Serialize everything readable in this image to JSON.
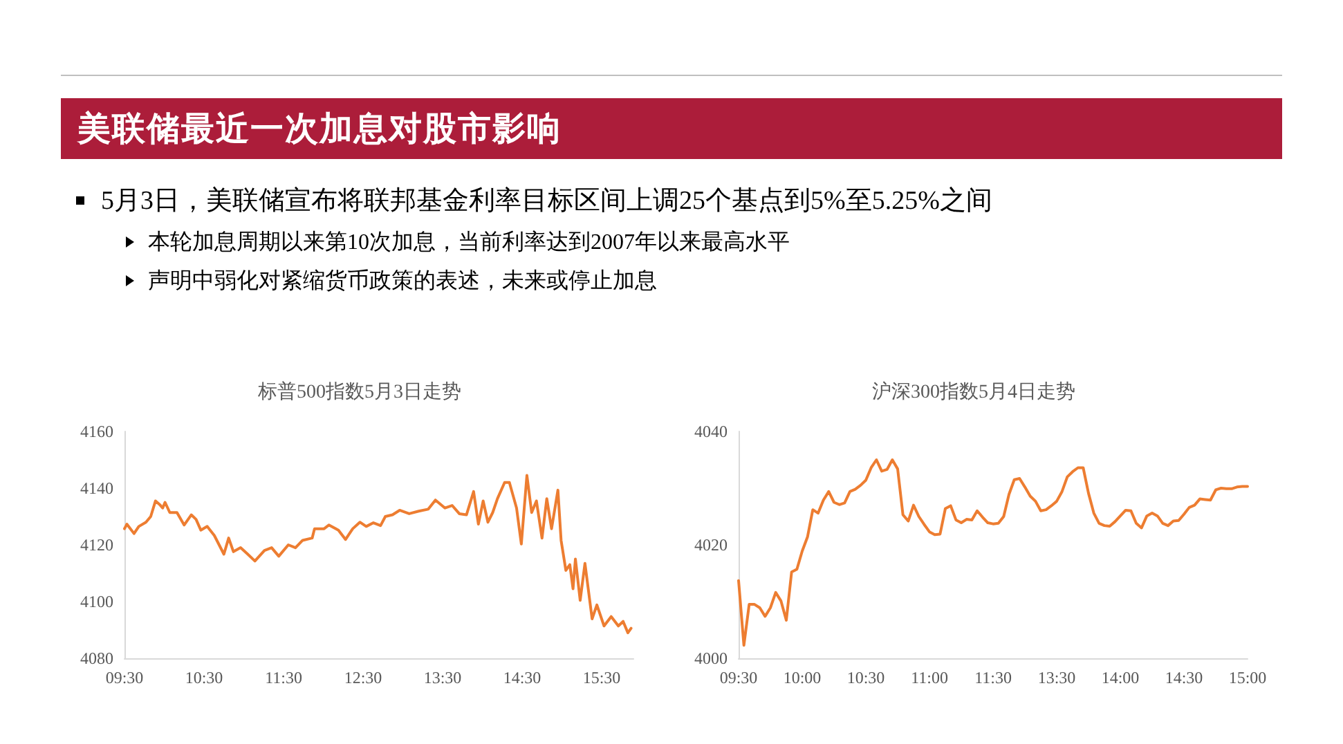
{
  "chart_data": [
    {
      "type": "other",
      "title": "美联储最近一次加息对股市影响",
      "annotations": [
        "5月3日，美联储宣布将联邦基金利率目标区间上调25个基点到5%至5.25%之间",
        "本轮加息周期以来第10次加息，当前利率达到2007年以来最高水平",
        "声明中弱化对紧缩货币政策的表述，未来或停止加息"
      ]
    },
    {
      "type": "line",
      "title": "标普500指数5月3日走势",
      "color": "#ed7d31",
      "marker": "none",
      "grid": false,
      "x": [
        9.5,
        9.53,
        9.62,
        9.68,
        9.77,
        9.83,
        9.89,
        9.95,
        9.98,
        10.01,
        10.07,
        10.16,
        10.25,
        10.34,
        10.4,
        10.46,
        10.54,
        10.63,
        10.75,
        10.81,
        10.87,
        10.96,
        11.05,
        11.14,
        11.26,
        11.35,
        11.44,
        11.56,
        11.65,
        11.74,
        11.86,
        11.89,
        12.01,
        12.07,
        12.19,
        12.28,
        12.37,
        12.46,
        12.54,
        12.63,
        12.72,
        12.78,
        12.87,
        12.96,
        13.08,
        13.2,
        13.32,
        13.41,
        13.53,
        13.62,
        13.71,
        13.8,
        13.89,
        13.95,
        14.01,
        14.07,
        14.13,
        14.19,
        14.28,
        14.34,
        14.43,
        14.49,
        14.56,
        14.62,
        14.68,
        14.75,
        14.81,
        14.87,
        14.95,
        14.99,
        15.05,
        15.1,
        15.14,
        15.17,
        15.23,
        15.29,
        15.38,
        15.44,
        15.53,
        15.62,
        15.71,
        15.77,
        15.83,
        15.87
      ],
      "values": [
        4125.7,
        4127.3,
        4124,
        4126.5,
        4128,
        4130,
        4135.5,
        4134,
        4133,
        4135,
        4131.4,
        4131.4,
        4127,
        4130.6,
        4129,
        4125.2,
        4126.5,
        4123.3,
        4116.7,
        4122.4,
        4117.6,
        4119,
        4116.7,
        4114.3,
        4118,
        4119,
        4116,
        4120,
        4119,
        4121.6,
        4122.4,
        4125.7,
        4125.7,
        4127,
        4125.2,
        4121.9,
        4125.7,
        4128,
        4126.5,
        4127.8,
        4126.8,
        4130,
        4130.6,
        4132.2,
        4131,
        4131.9,
        4132.6,
        4135.8,
        4133,
        4133.9,
        4131,
        4130.6,
        4138.8,
        4127.3,
        4135.5,
        4128,
        4131.4,
        4136.3,
        4142,
        4142,
        4133,
        4120.3,
        4144.5,
        4131.4,
        4135.5,
        4122.4,
        4136.3,
        4125.7,
        4139.3,
        4121.6,
        4111,
        4113,
        4104.5,
        4115,
        4100.4,
        4113.5,
        4093.9,
        4098.8,
        4091.4,
        4094.7,
        4091.4,
        4093,
        4089,
        4090.6
      ],
      "xlim": [
        9.5,
        15.9
      ],
      "xticks": [
        {
          "value": 9.5,
          "label": "09:30"
        },
        {
          "value": 10.5,
          "label": "10:30"
        },
        {
          "value": 11.5,
          "label": "11:30"
        },
        {
          "value": 12.5,
          "label": "12:30"
        },
        {
          "value": 13.5,
          "label": "13:30"
        },
        {
          "value": 14.5,
          "label": "14:30"
        },
        {
          "value": 15.5,
          "label": "15:30"
        }
      ],
      "ylim": [
        4080,
        4160
      ],
      "yticks": [
        4080,
        4100,
        4120,
        4140,
        4160
      ]
    },
    {
      "type": "line",
      "title": "沪深300指数5月4日走势",
      "color": "#ed7d31",
      "marker": "none",
      "grid": false,
      "categories": [
        "09:30",
        null,
        null,
        null,
        null,
        null,
        null,
        null,
        null,
        null,
        null,
        null,
        "10:00",
        null,
        null,
        null,
        null,
        null,
        null,
        null,
        null,
        null,
        null,
        null,
        "10:30",
        null,
        null,
        null,
        null,
        null,
        null,
        null,
        null,
        null,
        null,
        null,
        "11:00",
        null,
        null,
        null,
        null,
        null,
        null,
        null,
        null,
        null,
        null,
        null,
        "11:30",
        null,
        null,
        null,
        null,
        null,
        null,
        null,
        null,
        null,
        null,
        null,
        "13:30",
        null,
        null,
        null,
        null,
        null,
        null,
        null,
        null,
        null,
        null,
        null,
        "14:00",
        null,
        null,
        null,
        null,
        null,
        null,
        null,
        null,
        null,
        null,
        null,
        "14:30",
        null,
        null,
        null,
        null,
        null,
        null,
        null,
        null,
        null,
        null,
        null,
        "15:00"
      ],
      "values": [
        4013.7,
        4002.3,
        4009.5,
        4009.5,
        4008.9,
        4007.4,
        4008.9,
        4011.6,
        4010.1,
        4006.7,
        4015.2,
        4015.7,
        4018.9,
        4021.4,
        4026.2,
        4025.6,
        4027.9,
        4029.4,
        4027.5,
        4027.1,
        4027.4,
        4029.4,
        4029.8,
        4030.5,
        4031.4,
        4033.6,
        4035,
        4033,
        4033.3,
        4035,
        4033.4,
        4025.3,
        4024.2,
        4027,
        4025,
        4023.6,
        4022.3,
        4021.8,
        4021.9,
        4026.4,
        4026.9,
        4024.4,
        4023.9,
        4024.5,
        4024.4,
        4026,
        4024.9,
        4023.9,
        4023.7,
        4023.8,
        4025,
        4028.9,
        4031.5,
        4031.7,
        4030.2,
        4028.6,
        4027.7,
        4026,
        4026.2,
        4026.9,
        4027.7,
        4029.4,
        4032,
        4032.9,
        4033.6,
        4033.6,
        4029.1,
        4025.6,
        4023.8,
        4023.4,
        4023.3,
        4024.1,
        4025.1,
        4026.1,
        4026,
        4023.8,
        4023,
        4025.1,
        4025.6,
        4025.1,
        4023.8,
        4023.4,
        4024.2,
        4024.3,
        4025.4,
        4026.6,
        4027,
        4028.1,
        4028,
        4027.9,
        4029.7,
        4030,
        4029.9,
        4029.9,
        4030.2,
        4030.3,
        4030.3
      ],
      "ylim": [
        4000,
        4040
      ],
      "yticks": [
        4000,
        4020,
        4040
      ]
    }
  ]
}
